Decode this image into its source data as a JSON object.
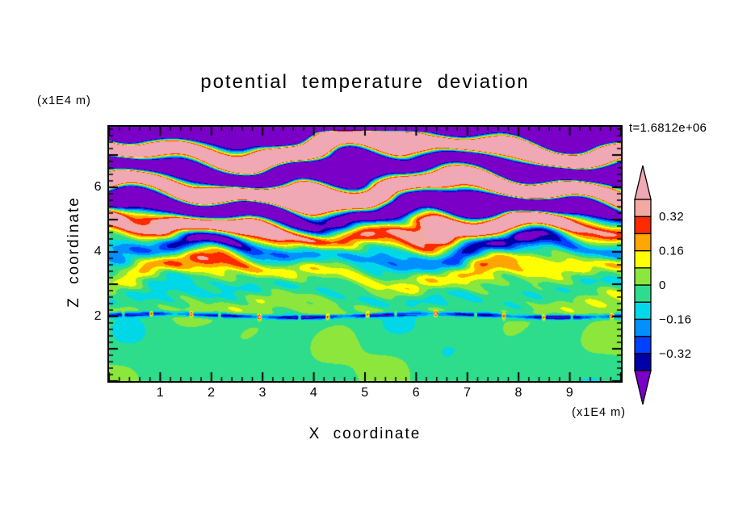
{
  "chart_data": {
    "type": "filled_contour",
    "title": "potential temperature deviation",
    "xlabel": "X coordinate",
    "zlabel": "Z coordinate",
    "x_units": "(x1E4 m)",
    "z_units": "(x1E4 m)",
    "time_annotation": "t=1.6812e+06",
    "x_range": [
      0,
      10
    ],
    "z_range": [
      0,
      7.875
    ],
    "x_ticks": [
      1,
      2,
      3,
      4,
      5,
      6,
      7,
      8,
      9
    ],
    "z_ticks": [
      2,
      4,
      6
    ],
    "minor_tick_step": 0.2,
    "levels": [
      -0.4,
      -0.32,
      -0.24,
      -0.16,
      -0.08,
      0,
      0.08,
      0.16,
      0.24,
      0.32,
      0.4
    ],
    "interval_colors": [
      "#0000A8",
      "#0040FF",
      "#0090FF",
      "#00D8E8",
      "#2EDD8C",
      "#8CE63C",
      "#FFFF00",
      "#FFA500",
      "#FF2A00",
      "#F2A9A2"
    ],
    "below_color": "#7A00C8",
    "above_color": "#F0A8B4",
    "colorbar_labels": [
      {
        "value": 0.32,
        "label": "0.32"
      },
      {
        "value": 0.16,
        "label": "0.16"
      },
      {
        "value": 0,
        "label": "0"
      },
      {
        "value": -0.16,
        "label": "−0.16"
      },
      {
        "value": -0.32,
        "label": "−0.32"
      }
    ],
    "field_model": {
      "stripe_wavelength": 1.3,
      "stripe_phase0": -1.9,
      "amplitude_profile": [
        [
          0,
          0
        ],
        [
          2.05,
          0.055
        ],
        [
          3.1,
          0.1
        ],
        [
          4.2,
          0.3
        ],
        [
          4.9,
          0.6
        ],
        [
          5.4,
          1.3
        ],
        [
          7.875,
          1.3
        ]
      ],
      "phase_waves": [
        {
          "amp": 1.5,
          "kx": 0.9,
          "kz": 0.8,
          "ph": 0.0
        },
        {
          "amp": 0.8,
          "kx": 2.1,
          "kz": -1.7,
          "ph": 1.3
        },
        {
          "amp": 0.45,
          "kx": 3.7,
          "kz": 2.9,
          "ph": 4.1
        }
      ],
      "amp_mod": {
        "amp": 0.3,
        "kx": 1.3,
        "kz": -0.8,
        "ph": 2.0
      },
      "ripple": {
        "amp": 0.05,
        "kx1": 7.3,
        "kz1": 11.0,
        "kx2": 2.3,
        "kz2": -3.1
      },
      "bottom": {
        "top_z": 2.05,
        "base": -0.028,
        "amp": 0.032,
        "waves": [
          {
            "amp": 1.0,
            "kx": 1.1,
            "kz": 1.9,
            "ph": 1.4
          },
          {
            "amp": 0.7,
            "kx": 2.3,
            "kz": 1.1,
            "ph": 2.0
          },
          {
            "amp": 0.5,
            "kx": 3.7,
            "kz": -2.3,
            "ph": 0.7
          }
        ]
      },
      "interface": {
        "z": 2.02,
        "width": 0.07,
        "wobble_amp": 0.06,
        "wobble_kx": 1.2,
        "wobble_ph": 0.4,
        "neg_amp": -0.4,
        "neg_base": 0.4,
        "neg_var": 0.6,
        "mod_kx": 1.9,
        "mod_ph": 0.7,
        "spike_amp": 0.9,
        "spike_kx1": 9.1,
        "spike_kx2": 23.7,
        "spike_ph": 1.1,
        "spike_bias": -1.2
      },
      "top_cap": {
        "z_start": 7.7,
        "ramp": 0.1,
        "amp": -0.9
      }
    }
  }
}
